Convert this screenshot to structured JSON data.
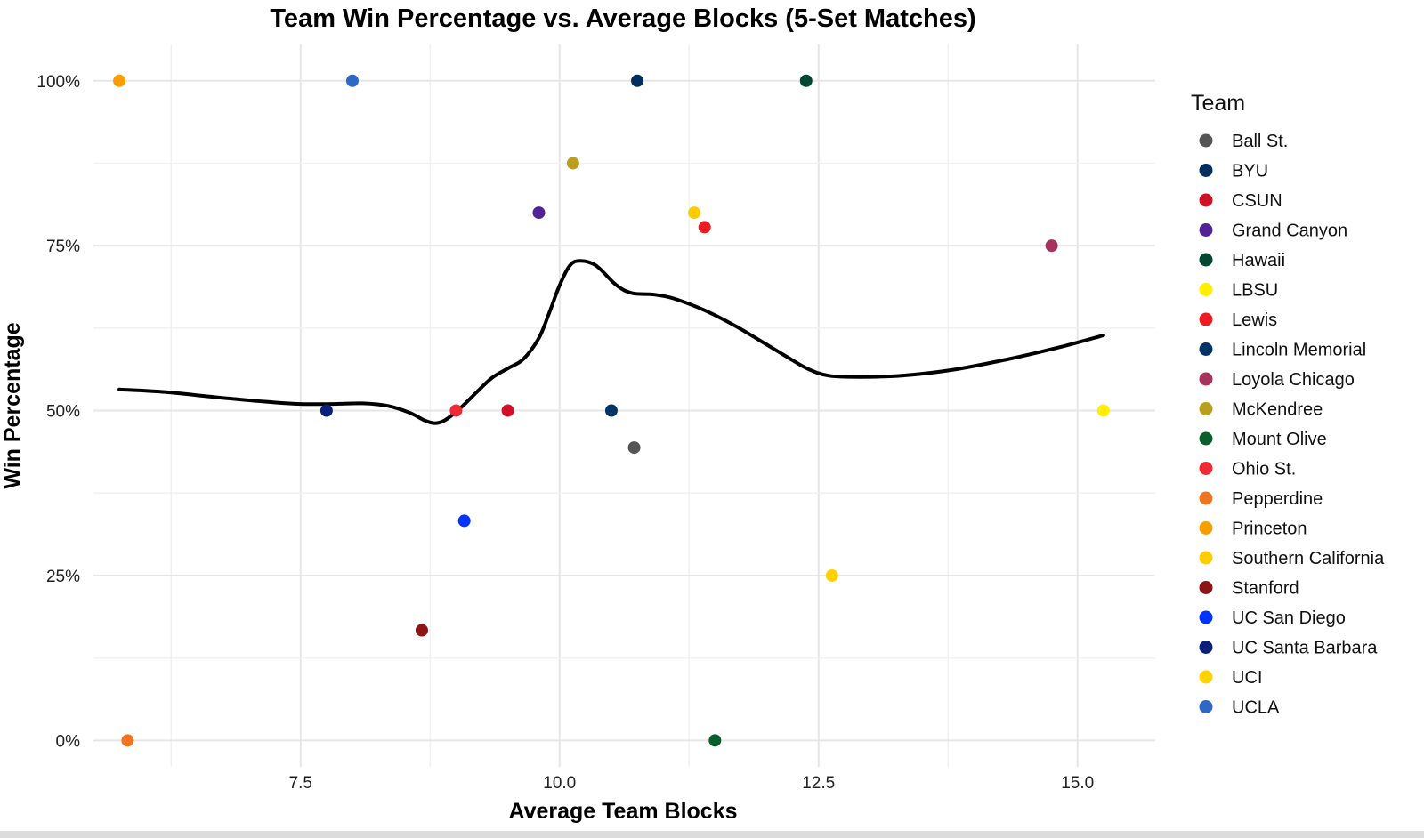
{
  "chart_data": {
    "type": "scatter",
    "title": "Team Win Percentage vs. Average Blocks (5-Set Matches)",
    "xlabel": "Average Team Blocks",
    "ylabel": "Win Percentage",
    "xlim": [
      5.5,
      15.75
    ],
    "ylim": [
      -0.04,
      1.055
    ],
    "x_ticks": [
      7.5,
      10.0,
      12.5,
      15.0
    ],
    "x_tick_labels": [
      "7.5",
      "10.0",
      "12.5",
      "15.0"
    ],
    "y_ticks": [
      0,
      0.25,
      0.5,
      0.75,
      1.0
    ],
    "y_tick_labels": [
      "0%",
      "25%",
      "50%",
      "75%",
      "100%"
    ],
    "grid": true,
    "legend": {
      "title": "Team",
      "placement": "right"
    },
    "series": [
      {
        "name": "Ball St.",
        "color": "#555555",
        "x": [
          10.72
        ],
        "y": [
          0.444
        ]
      },
      {
        "name": "BYU",
        "color": "#002E5D",
        "x": [
          10.75
        ],
        "y": [
          1.0
        ]
      },
      {
        "name": "CSUN",
        "color": "#CE1126",
        "x": [
          9.5
        ],
        "y": [
          0.5
        ]
      },
      {
        "name": "Grand Canyon",
        "color": "#522398",
        "x": [
          9.8
        ],
        "y": [
          0.8
        ]
      },
      {
        "name": "Hawaii",
        "color": "#024731",
        "x": [
          12.38
        ],
        "y": [
          1.0
        ]
      },
      {
        "name": "LBSU",
        "color": "#FFEE00",
        "x": [
          15.25
        ],
        "y": [
          0.5
        ]
      },
      {
        "name": "Lewis",
        "color": "#ED1C24",
        "x": [
          11.4
        ],
        "y": [
          0.778
        ]
      },
      {
        "name": "Lincoln Memorial",
        "color": "#003366",
        "x": [
          10.5
        ],
        "y": [
          0.5
        ]
      },
      {
        "name": "Loyola Chicago",
        "color": "#A6325E",
        "x": [
          14.75
        ],
        "y": [
          0.75
        ]
      },
      {
        "name": "McKendree",
        "color": "#B8A01E",
        "x": [
          10.13
        ],
        "y": [
          0.875
        ]
      },
      {
        "name": "Mount Olive",
        "color": "#0B5E2B",
        "x": [
          11.5
        ],
        "y": [
          0.0
        ]
      },
      {
        "name": "Ohio St.",
        "color": "#EE2A35",
        "x": [
          9.0
        ],
        "y": [
          0.5
        ]
      },
      {
        "name": "Pepperdine",
        "color": "#EE7623",
        "x": [
          5.83
        ],
        "y": [
          0.0
        ]
      },
      {
        "name": "Princeton",
        "color": "#F5A000",
        "x": [
          5.75
        ],
        "y": [
          1.0
        ]
      },
      {
        "name": "Southern California",
        "color": "#FFCC00",
        "x": [
          11.3
        ],
        "y": [
          0.8
        ]
      },
      {
        "name": "Stanford",
        "color": "#8C1515",
        "x": [
          8.67
        ],
        "y": [
          0.167
        ]
      },
      {
        "name": "UC San Diego",
        "color": "#0033FF",
        "x": [
          9.08
        ],
        "y": [
          0.333
        ]
      },
      {
        "name": "UC Santa Barbara",
        "color": "#0A1F7A",
        "x": [
          7.75
        ],
        "y": [
          0.5
        ]
      },
      {
        "name": "UCI",
        "color": "#FFD200",
        "x": [
          12.63
        ],
        "y": [
          0.25
        ]
      },
      {
        "name": "UCLA",
        "color": "#2D68C4",
        "x": [
          8.0
        ],
        "y": [
          1.0
        ]
      }
    ],
    "trend": {
      "color": "#000000",
      "x": [
        5.75,
        6.2,
        6.7,
        7.2,
        7.5,
        7.8,
        8.1,
        8.35,
        8.55,
        8.7,
        8.8,
        8.9,
        9.05,
        9.2,
        9.35,
        9.5,
        9.65,
        9.8,
        9.9,
        10.0,
        10.1,
        10.2,
        10.35,
        10.55,
        10.7,
        10.9,
        11.1,
        11.4,
        11.7,
        12.0,
        12.2,
        12.4,
        12.6,
        12.9,
        13.3,
        13.8,
        14.3,
        14.8,
        15.25
      ],
      "y": [
        0.532,
        0.528,
        0.52,
        0.513,
        0.51,
        0.51,
        0.511,
        0.507,
        0.497,
        0.485,
        0.481,
        0.486,
        0.505,
        0.528,
        0.55,
        0.564,
        0.578,
        0.61,
        0.648,
        0.69,
        0.72,
        0.727,
        0.72,
        0.69,
        0.678,
        0.676,
        0.67,
        0.652,
        0.628,
        0.6,
        0.581,
        0.563,
        0.553,
        0.551,
        0.553,
        0.562,
        0.577,
        0.595,
        0.614
      ]
    }
  }
}
